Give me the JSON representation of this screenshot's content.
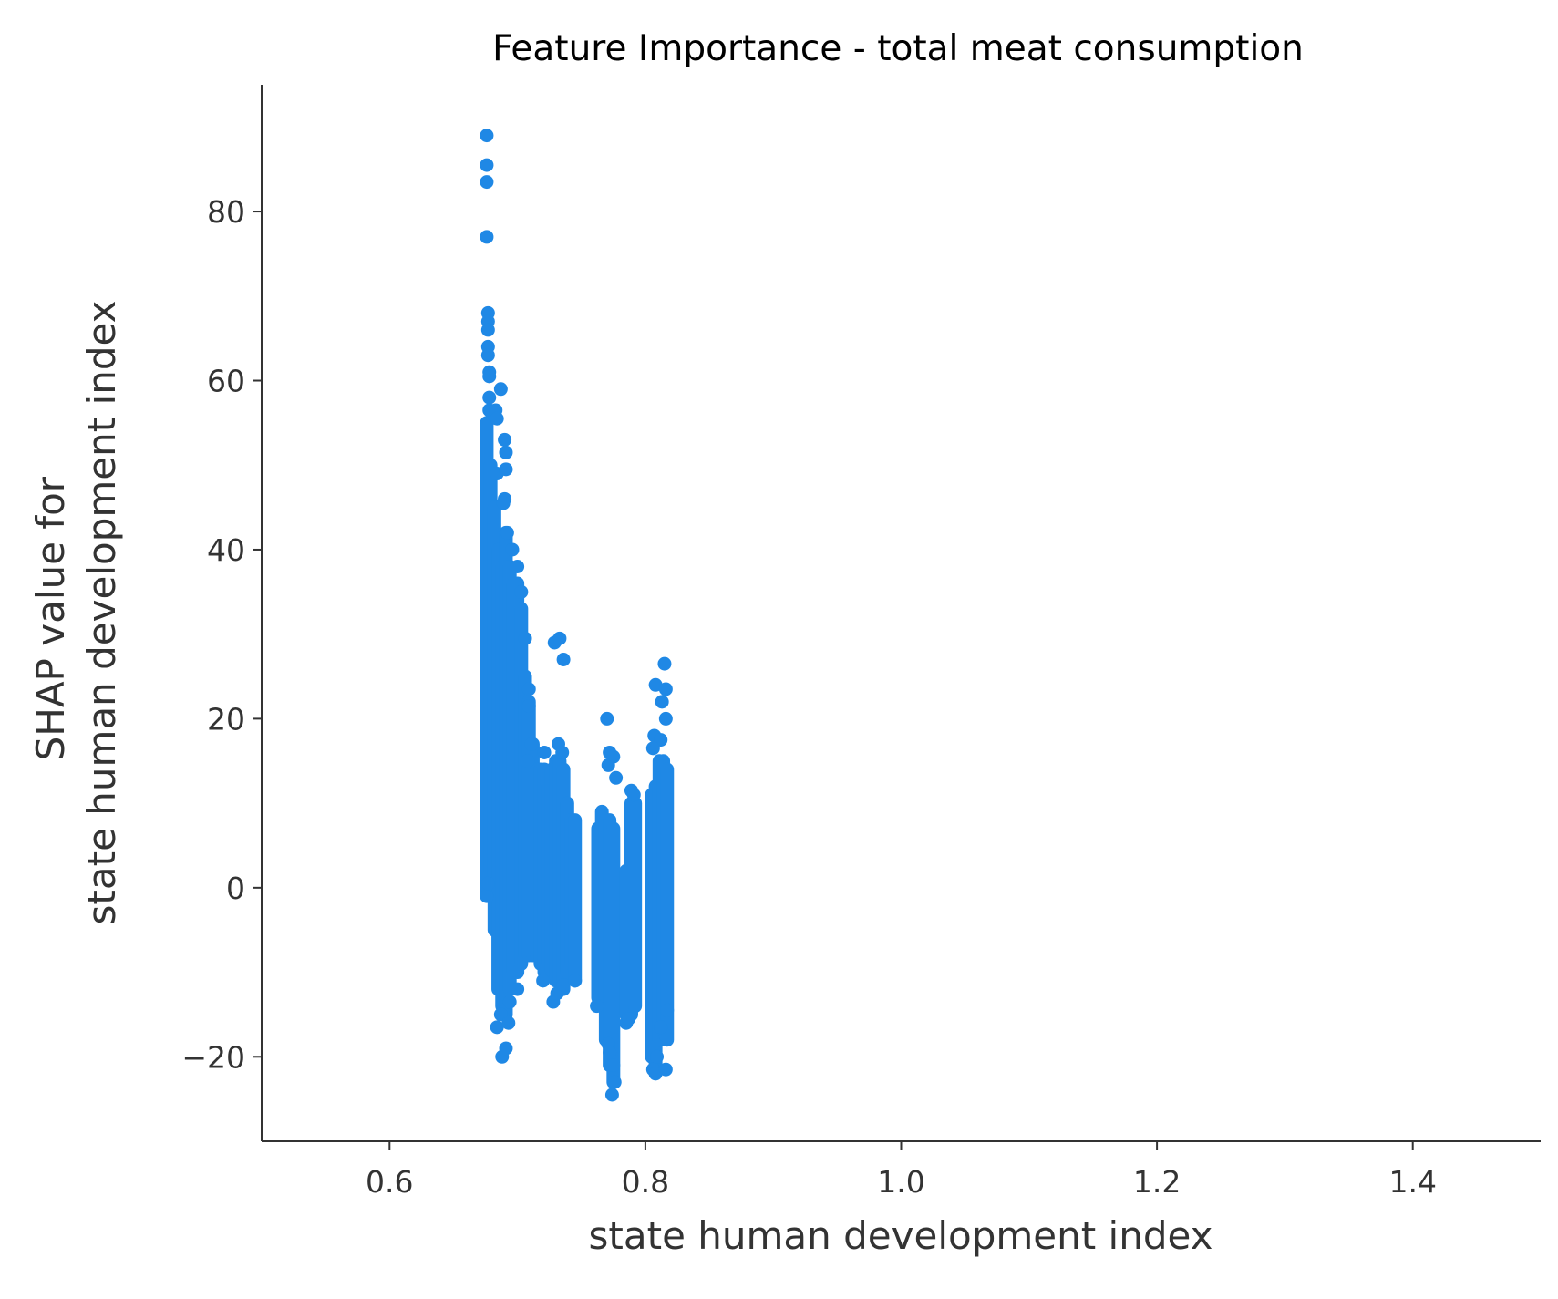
{
  "chart_data": {
    "type": "scatter",
    "title": "Feature Importance - total meat consumption",
    "xlabel": "state human development index",
    "ylabel_lines": [
      "SHAP value for",
      "state human development index"
    ],
    "xlim": [
      0.5,
      1.5
    ],
    "ylim": [
      -30,
      95
    ],
    "x_ticks": [
      0.6,
      0.8,
      1.0,
      1.2,
      1.4
    ],
    "x_tick_labels": [
      "0.6",
      "0.8",
      "1.0",
      "1.2",
      "1.4"
    ],
    "y_ticks": [
      -20,
      0,
      20,
      40,
      60,
      80
    ],
    "y_tick_labels": [
      "−20",
      "0",
      "20",
      "40",
      "60",
      "80"
    ],
    "grid": false,
    "marker_color": "#1f88e5",
    "column_ranges": [
      {
        "x": 0.676,
        "ymin": -1.0,
        "ymax": 55.0
      },
      {
        "x": 0.679,
        "ymin": 2.0,
        "ymax": 50.0
      },
      {
        "x": 0.682,
        "ymin": -5.0,
        "ymax": 45.0
      },
      {
        "x": 0.685,
        "ymin": -12.0,
        "ymax": 40.0
      },
      {
        "x": 0.688,
        "ymin": -14.0,
        "ymax": 38.0
      },
      {
        "x": 0.691,
        "ymin": -15.0,
        "ymax": 42.0
      },
      {
        "x": 0.694,
        "ymin": -12.0,
        "ymax": 38.0
      },
      {
        "x": 0.697,
        "ymin": -10.0,
        "ymax": 36.0
      },
      {
        "x": 0.7,
        "ymin": -10.0,
        "ymax": 36.0
      },
      {
        "x": 0.703,
        "ymin": -9.0,
        "ymax": 33.0
      },
      {
        "x": 0.706,
        "ymin": -8.0,
        "ymax": 25.0
      },
      {
        "x": 0.709,
        "ymin": -8.0,
        "ymax": 22.0
      },
      {
        "x": 0.712,
        "ymin": -8.0,
        "ymax": 17.0
      },
      {
        "x": 0.715,
        "ymin": -8.0,
        "ymax": 14.0
      },
      {
        "x": 0.718,
        "ymin": -9.0,
        "ymax": 14.0
      },
      {
        "x": 0.721,
        "ymin": -10.0,
        "ymax": 14.0
      },
      {
        "x": 0.724,
        "ymin": -9.0,
        "ymax": 12.0
      },
      {
        "x": 0.727,
        "ymin": -10.0,
        "ymax": 14.0
      },
      {
        "x": 0.73,
        "ymin": -11.0,
        "ymax": 15.0
      },
      {
        "x": 0.733,
        "ymin": -11.0,
        "ymax": 15.0
      },
      {
        "x": 0.736,
        "ymin": -12.0,
        "ymax": 14.0
      },
      {
        "x": 0.739,
        "ymin": -10.0,
        "ymax": 10.0
      },
      {
        "x": 0.742,
        "ymin": -9.0,
        "ymax": 8.0
      },
      {
        "x": 0.745,
        "ymin": -11.0,
        "ymax": 8.0
      },
      {
        "x": 0.763,
        "ymin": -13.0,
        "ymax": 7.0
      },
      {
        "x": 0.766,
        "ymin": -12.0,
        "ymax": 9.0
      },
      {
        "x": 0.769,
        "ymin": -18.0,
        "ymax": 8.0
      },
      {
        "x": 0.772,
        "ymin": -21.0,
        "ymax": 8.0
      },
      {
        "x": 0.775,
        "ymin": -23.0,
        "ymax": 7.0
      },
      {
        "x": 0.785,
        "ymin": -15.0,
        "ymax": 2.0
      },
      {
        "x": 0.789,
        "ymin": -15.0,
        "ymax": 10.0
      },
      {
        "x": 0.792,
        "ymin": -14.0,
        "ymax": 10.0
      },
      {
        "x": 0.805,
        "ymin": -20.0,
        "ymax": 11.0
      },
      {
        "x": 0.808,
        "ymin": -21.0,
        "ymax": 12.0
      },
      {
        "x": 0.811,
        "ymin": -18.0,
        "ymax": 15.0
      },
      {
        "x": 0.814,
        "ymin": -16.0,
        "ymax": 15.0
      },
      {
        "x": 0.817,
        "ymin": -18.0,
        "ymax": 14.0
      }
    ],
    "points": [
      [
        0.676,
        89.0
      ],
      [
        0.676,
        85.5
      ],
      [
        0.676,
        83.5
      ],
      [
        0.676,
        77.0
      ],
      [
        0.677,
        68.0
      ],
      [
        0.677,
        67.0
      ],
      [
        0.677,
        66.0
      ],
      [
        0.677,
        64.0
      ],
      [
        0.677,
        63.0
      ],
      [
        0.678,
        61.0
      ],
      [
        0.678,
        60.5
      ],
      [
        0.678,
        58.0
      ],
      [
        0.678,
        56.5
      ],
      [
        0.687,
        59.0
      ],
      [
        0.683,
        56.5
      ],
      [
        0.684,
        55.5
      ],
      [
        0.684,
        49.0
      ],
      [
        0.69,
        53.0
      ],
      [
        0.691,
        51.5
      ],
      [
        0.691,
        49.5
      ],
      [
        0.69,
        46.0
      ],
      [
        0.689,
        45.5
      ],
      [
        0.692,
        42.0
      ],
      [
        0.696,
        40.0
      ],
      [
        0.7,
        38.0
      ],
      [
        0.703,
        35.0
      ],
      [
        0.706,
        29.5
      ],
      [
        0.709,
        23.5
      ],
      [
        0.709,
        21.5
      ],
      [
        0.711,
        17.0
      ],
      [
        0.708,
        15.0
      ],
      [
        0.729,
        29.0
      ],
      [
        0.733,
        29.5
      ],
      [
        0.736,
        27.0
      ],
      [
        0.732,
        17.0
      ],
      [
        0.735,
        16.0
      ],
      [
        0.721,
        16.0
      ],
      [
        0.77,
        20.0
      ],
      [
        0.772,
        16.0
      ],
      [
        0.775,
        15.5
      ],
      [
        0.771,
        14.5
      ],
      [
        0.777,
        13.0
      ],
      [
        0.789,
        11.5
      ],
      [
        0.791,
        11.0
      ],
      [
        0.808,
        24.0
      ],
      [
        0.815,
        26.5
      ],
      [
        0.816,
        23.5
      ],
      [
        0.813,
        22.0
      ],
      [
        0.816,
        20.0
      ],
      [
        0.807,
        18.0
      ],
      [
        0.812,
        17.5
      ],
      [
        0.806,
        16.5
      ],
      [
        0.676,
        -1.0
      ],
      [
        0.677,
        0.5
      ],
      [
        0.684,
        -16.5
      ],
      [
        0.687,
        -15.0
      ],
      [
        0.688,
        -20.0
      ],
      [
        0.691,
        -19.0
      ],
      [
        0.693,
        -16.0
      ],
      [
        0.694,
        -13.5
      ],
      [
        0.7,
        -12.0
      ],
      [
        0.728,
        -13.5
      ],
      [
        0.731,
        -12.5
      ],
      [
        0.736,
        -11.5
      ],
      [
        0.72,
        -11.0
      ],
      [
        0.745,
        -11.0
      ],
      [
        0.762,
        -14.0
      ],
      [
        0.771,
        -18.5
      ],
      [
        0.772,
        -19.5
      ],
      [
        0.774,
        -24.5
      ],
      [
        0.776,
        -23.0
      ],
      [
        0.775,
        -21.0
      ],
      [
        0.785,
        -16.0
      ],
      [
        0.787,
        -15.5
      ],
      [
        0.806,
        -21.5
      ],
      [
        0.808,
        -22.0
      ],
      [
        0.816,
        -21.5
      ],
      [
        0.809,
        -20.0
      ],
      [
        0.816,
        -17.5
      ],
      [
        0.812,
        -16.5
      ],
      [
        0.817,
        -14.5
      ]
    ]
  }
}
